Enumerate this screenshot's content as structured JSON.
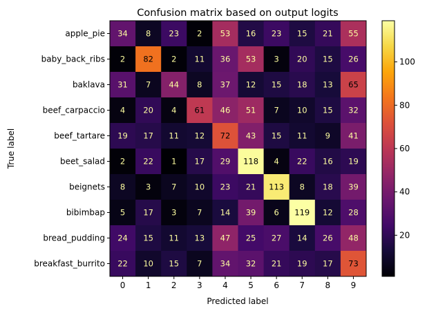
{
  "chart_data": {
    "type": "heatmap",
    "title": "Confusion matrix based on output logits",
    "xlabel": "Predicted label",
    "ylabel": "True label",
    "x_categories": [
      "0",
      "1",
      "2",
      "3",
      "4",
      "5",
      "6",
      "7",
      "8",
      "9"
    ],
    "y_categories": [
      "apple_pie",
      "baby_back_ribs",
      "baklava",
      "beef_carpaccio",
      "beef_tartare",
      "beet_salad",
      "beignets",
      "bibimbap",
      "bread_pudding",
      "breakfast_burrito"
    ],
    "values": [
      [
        34,
        8,
        23,
        2,
        53,
        16,
        23,
        15,
        21,
        55
      ],
      [
        2,
        82,
        2,
        11,
        36,
        53,
        3,
        20,
        15,
        26
      ],
      [
        31,
        7,
        44,
        8,
        37,
        12,
        15,
        18,
        13,
        65
      ],
      [
        4,
        20,
        4,
        61,
        46,
        51,
        7,
        10,
        15,
        32
      ],
      [
        19,
        17,
        11,
        12,
        72,
        43,
        15,
        11,
        9,
        41
      ],
      [
        2,
        22,
        1,
        17,
        29,
        118,
        4,
        22,
        16,
        19
      ],
      [
        8,
        3,
        7,
        10,
        23,
        21,
        113,
        8,
        18,
        39
      ],
      [
        5,
        17,
        3,
        7,
        14,
        39,
        6,
        119,
        12,
        28
      ],
      [
        24,
        15,
        11,
        13,
        47,
        25,
        27,
        14,
        26,
        48
      ],
      [
        22,
        10,
        15,
        7,
        34,
        32,
        21,
        19,
        17,
        73
      ]
    ],
    "colormap": "inferno",
    "colorbar": {
      "range": [
        1,
        119
      ],
      "ticks": [
        "20",
        "40",
        "60",
        "80",
        "100"
      ]
    },
    "grid": false
  }
}
